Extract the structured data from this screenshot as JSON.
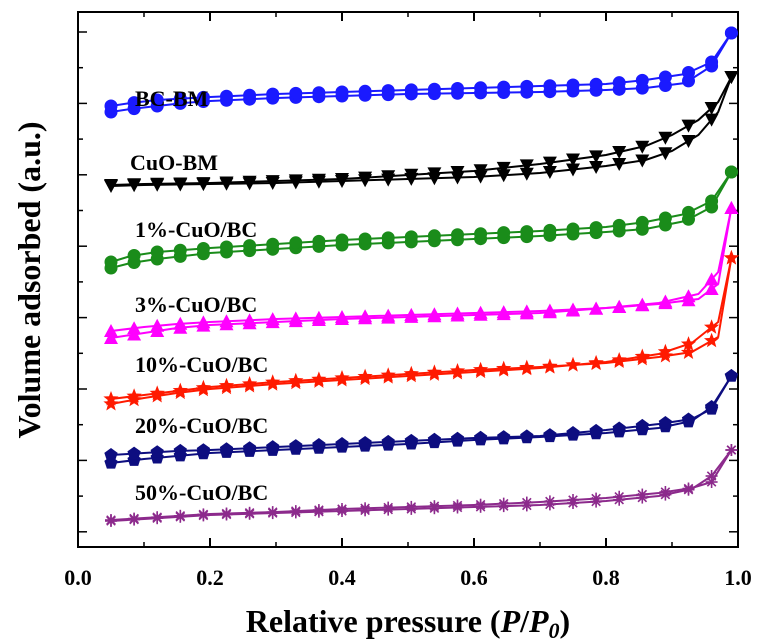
{
  "chart_data": {
    "type": "line",
    "xlabel_main": "Relative pressure (",
    "xlabel_italic_P": "P",
    "xlabel_slash": "/",
    "xlabel_italic_P0": "P",
    "xlabel_sub": "0",
    "xlabel_close": ")",
    "ylabel": "Volume adsorbed (a.u.)",
    "xlim": [
      0.0,
      1.0
    ],
    "x_ticks": [
      "0.0",
      "0.2",
      "0.4",
      "0.6",
      "0.8",
      "1.0"
    ],
    "y_tick_labels_shown": false,
    "grid": false,
    "series": [
      {
        "name": "BC-BM",
        "color": "#1a1aff",
        "marker": "circle",
        "adsorption": [
          [
            0.05,
            112
          ],
          [
            0.08,
            109
          ],
          [
            0.12,
            106
          ],
          [
            0.16,
            103
          ],
          [
            0.2,
            101
          ],
          [
            0.3,
            98
          ],
          [
            0.4,
            96
          ],
          [
            0.5,
            94
          ],
          [
            0.6,
            93
          ],
          [
            0.7,
            92
          ],
          [
            0.8,
            90
          ],
          [
            0.86,
            88
          ],
          [
            0.92,
            83
          ],
          [
            0.96,
            66
          ],
          [
            0.99,
            33
          ]
        ],
        "desorption": [
          [
            0.99,
            33
          ],
          [
            0.96,
            62
          ],
          [
            0.92,
            74
          ],
          [
            0.86,
            80
          ],
          [
            0.8,
            84
          ],
          [
            0.7,
            86
          ],
          [
            0.6,
            88
          ],
          [
            0.5,
            90
          ],
          [
            0.4,
            92
          ],
          [
            0.3,
            94
          ],
          [
            0.2,
            97
          ],
          [
            0.12,
            100
          ],
          [
            0.08,
            103
          ],
          [
            0.05,
            106
          ]
        ]
      },
      {
        "name": "CuO-BM",
        "color": "#000000",
        "marker": "triangle-down",
        "adsorption": [
          [
            0.05,
            186
          ],
          [
            0.1,
            185
          ],
          [
            0.2,
            184
          ],
          [
            0.3,
            183
          ],
          [
            0.4,
            181
          ],
          [
            0.5,
            179
          ],
          [
            0.6,
            177
          ],
          [
            0.7,
            173
          ],
          [
            0.8,
            166
          ],
          [
            0.86,
            160
          ],
          [
            0.9,
            151
          ],
          [
            0.94,
            135
          ],
          [
            0.97,
            112
          ],
          [
            0.99,
            77
          ]
        ],
        "desorption": [
          [
            0.99,
            77
          ],
          [
            0.97,
            102
          ],
          [
            0.94,
            120
          ],
          [
            0.9,
            135
          ],
          [
            0.86,
            146
          ],
          [
            0.8,
            155
          ],
          [
            0.7,
            164
          ],
          [
            0.6,
            171
          ],
          [
            0.5,
            175
          ],
          [
            0.4,
            179
          ],
          [
            0.3,
            181
          ],
          [
            0.2,
            183
          ],
          [
            0.1,
            184
          ],
          [
            0.05,
            185
          ]
        ]
      },
      {
        "name": "1%-CuO/BC",
        "color": "#1a8c1a",
        "marker": "circle",
        "adsorption": [
          [
            0.05,
            268
          ],
          [
            0.08,
            263
          ],
          [
            0.12,
            259
          ],
          [
            0.16,
            256
          ],
          [
            0.2,
            253
          ],
          [
            0.3,
            249
          ],
          [
            0.4,
            245
          ],
          [
            0.5,
            242
          ],
          [
            0.6,
            239
          ],
          [
            0.7,
            236
          ],
          [
            0.8,
            232
          ],
          [
            0.86,
            229
          ],
          [
            0.92,
            221
          ],
          [
            0.96,
            207
          ],
          [
            0.99,
            172
          ]
        ],
        "desorption": [
          [
            0.99,
            172
          ],
          [
            0.96,
            201
          ],
          [
            0.92,
            214
          ],
          [
            0.86,
            222
          ],
          [
            0.8,
            227
          ],
          [
            0.7,
            231
          ],
          [
            0.6,
            234
          ],
          [
            0.5,
            237
          ],
          [
            0.4,
            240
          ],
          [
            0.3,
            244
          ],
          [
            0.2,
            248
          ],
          [
            0.12,
            252
          ],
          [
            0.08,
            256
          ],
          [
            0.05,
            262
          ]
        ]
      },
      {
        "name": "3%-CuO/BC",
        "color": "#ff00ff",
        "marker": "triangle-up",
        "adsorption": [
          [
            0.05,
            338
          ],
          [
            0.1,
            333
          ],
          [
            0.15,
            328
          ],
          [
            0.2,
            325
          ],
          [
            0.3,
            322
          ],
          [
            0.4,
            319
          ],
          [
            0.5,
            317
          ],
          [
            0.6,
            315
          ],
          [
            0.7,
            313
          ],
          [
            0.8,
            308
          ],
          [
            0.88,
            303
          ],
          [
            0.94,
            294
          ],
          [
            0.97,
            272
          ],
          [
            0.99,
            208
          ]
        ],
        "desorption": [
          [
            0.99,
            208
          ],
          [
            0.97,
            284
          ],
          [
            0.94,
            299
          ],
          [
            0.88,
            304
          ],
          [
            0.8,
            308
          ],
          [
            0.7,
            311
          ],
          [
            0.6,
            313
          ],
          [
            0.5,
            315
          ],
          [
            0.4,
            317
          ],
          [
            0.3,
            319
          ],
          [
            0.2,
            322
          ],
          [
            0.15,
            324
          ],
          [
            0.1,
            327
          ],
          [
            0.05,
            331
          ]
        ]
      },
      {
        "name": "10%-CuO/BC",
        "color": "#ff1a00",
        "marker": "star",
        "adsorption": [
          [
            0.05,
            404
          ],
          [
            0.1,
            398
          ],
          [
            0.15,
            393
          ],
          [
            0.2,
            389
          ],
          [
            0.3,
            384
          ],
          [
            0.4,
            380
          ],
          [
            0.5,
            376
          ],
          [
            0.6,
            372
          ],
          [
            0.7,
            368
          ],
          [
            0.8,
            362
          ],
          [
            0.88,
            354
          ],
          [
            0.93,
            343
          ],
          [
            0.97,
            322
          ],
          [
            0.99,
            258
          ]
        ],
        "desorption": [
          [
            0.99,
            258
          ],
          [
            0.97,
            337
          ],
          [
            0.93,
            352
          ],
          [
            0.88,
            357
          ],
          [
            0.8,
            363
          ],
          [
            0.7,
            367
          ],
          [
            0.6,
            370
          ],
          [
            0.5,
            374
          ],
          [
            0.4,
            378
          ],
          [
            0.3,
            382
          ],
          [
            0.2,
            387
          ],
          [
            0.15,
            391
          ],
          [
            0.1,
            395
          ],
          [
            0.05,
            399
          ]
        ]
      },
      {
        "name": "20%-CuO/BC",
        "color": "#0d0d80",
        "marker": "pentagon",
        "adsorption": [
          [
            0.05,
            463
          ],
          [
            0.1,
            459
          ],
          [
            0.15,
            456
          ],
          [
            0.2,
            453
          ],
          [
            0.3,
            450
          ],
          [
            0.4,
            447
          ],
          [
            0.5,
            444
          ],
          [
            0.6,
            440
          ],
          [
            0.7,
            437
          ],
          [
            0.8,
            433
          ],
          [
            0.88,
            428
          ],
          [
            0.93,
            421
          ],
          [
            0.96,
            407
          ],
          [
            0.99,
            376
          ]
        ],
        "desorption": [
          [
            0.99,
            376
          ],
          [
            0.96,
            409
          ],
          [
            0.93,
            419
          ],
          [
            0.88,
            424
          ],
          [
            0.8,
            430
          ],
          [
            0.7,
            436
          ],
          [
            0.6,
            438
          ],
          [
            0.5,
            441
          ],
          [
            0.4,
            444
          ],
          [
            0.3,
            447
          ],
          [
            0.2,
            450
          ],
          [
            0.15,
            451
          ],
          [
            0.1,
            453
          ],
          [
            0.05,
            455
          ]
        ]
      },
      {
        "name": "50%-CuO/BC",
        "color": "#8c2a8c",
        "marker": "asterisk",
        "adsorption": [
          [
            0.05,
            521
          ],
          [
            0.1,
            519
          ],
          [
            0.15,
            517
          ],
          [
            0.2,
            515
          ],
          [
            0.3,
            513
          ],
          [
            0.4,
            511
          ],
          [
            0.5,
            509
          ],
          [
            0.6,
            507
          ],
          [
            0.7,
            505
          ],
          [
            0.8,
            501
          ],
          [
            0.88,
            496
          ],
          [
            0.93,
            489
          ],
          [
            0.96,
            476
          ],
          [
            0.99,
            450
          ]
        ],
        "desorption": [
          [
            0.99,
            450
          ],
          [
            0.96,
            482
          ],
          [
            0.93,
            488
          ],
          [
            0.88,
            493
          ],
          [
            0.8,
            498
          ],
          [
            0.7,
            502
          ],
          [
            0.6,
            505
          ],
          [
            0.5,
            507
          ],
          [
            0.4,
            509
          ],
          [
            0.3,
            512
          ],
          [
            0.2,
            514
          ],
          [
            0.15,
            516
          ],
          [
            0.1,
            518
          ],
          [
            0.05,
            520
          ]
        ]
      }
    ]
  }
}
